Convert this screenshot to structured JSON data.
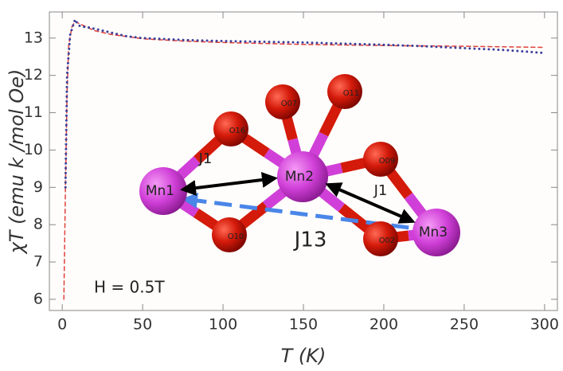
{
  "chart_data": {
    "type": "line",
    "x_label": "T (K)",
    "y_label": "χT (emu k /mol Oe)",
    "annotation": "H = 0.5T",
    "xlim": [
      -8,
      308
    ],
    "ylim": [
      5.7,
      13.7
    ],
    "xticks": [
      0,
      50,
      100,
      150,
      200,
      250,
      300
    ],
    "yticks": [
      6,
      7,
      8,
      9,
      10,
      11,
      12,
      13
    ],
    "series": [
      {
        "color": "#e0403a",
        "style": "dashed",
        "x": [
          1,
          2,
          3,
          4,
          6,
          8,
          10,
          15,
          20,
          30,
          50,
          75,
          100,
          150,
          200,
          250,
          300
        ],
        "values": [
          6,
          9,
          11.5,
          12.8,
          13.3,
          13.45,
          13.4,
          13.3,
          13.2,
          13.1,
          12.98,
          12.92,
          12.88,
          12.83,
          12.8,
          12.78,
          12.75
        ]
      },
      {
        "color": "#3a3f9a",
        "style": "dotted",
        "x": [
          2,
          3,
          5,
          8,
          10,
          12,
          15,
          20,
          25,
          30,
          40,
          50,
          60,
          75,
          100,
          125,
          150,
          175,
          200,
          225,
          250,
          275,
          300
        ],
        "values": [
          9,
          12,
          13.1,
          13.5,
          13.35,
          13.3,
          13.3,
          13.25,
          13.2,
          13.15,
          13.05,
          13,
          12.98,
          12.95,
          12.92,
          12.9,
          12.88,
          12.85,
          12.82,
          12.78,
          12.73,
          12.68,
          12.6
        ]
      }
    ],
    "inset": {
      "atoms": [
        "Mn1",
        "Mn2",
        "Mn3",
        "O16",
        "O07",
        "O11",
        "O09",
        "O10",
        "O02"
      ],
      "couplings": [
        "J1",
        "J1",
        "J13"
      ]
    }
  }
}
